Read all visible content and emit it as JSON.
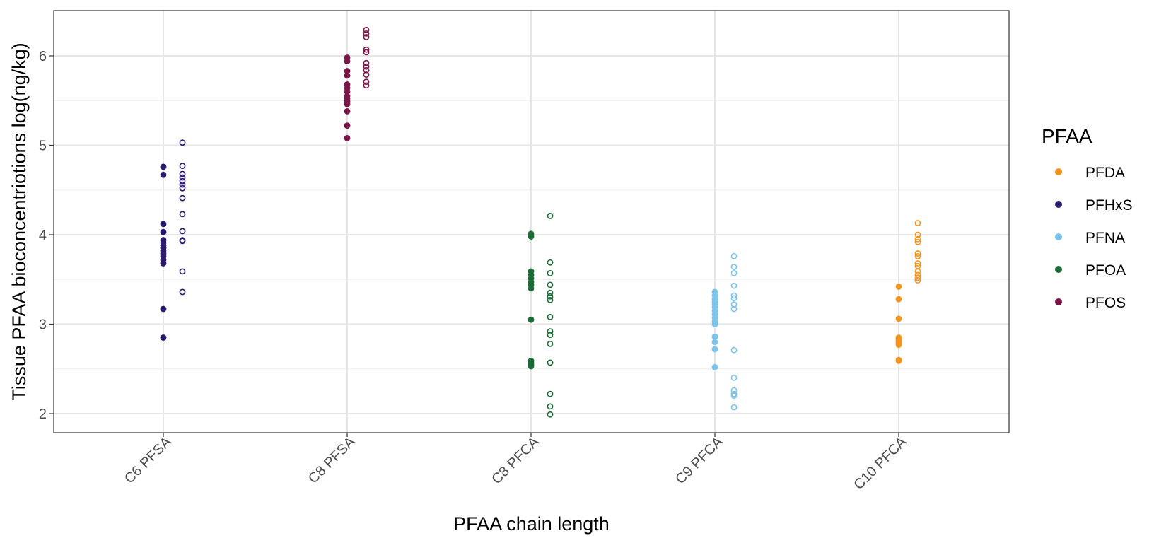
{
  "chart_data": {
    "type": "scatter",
    "title": "",
    "xlabel": "PFAA chain length",
    "ylabel": "Tissue PFAA bioconcentriotions log(ng/kg)",
    "ylim": [
      1.8,
      6.5
    ],
    "yticks": [
      2,
      3,
      4,
      5,
      6
    ],
    "categories": [
      "C6 PFSA",
      "C8 PFSA",
      "C8 PFCA",
      "C9 PFCA",
      "C10 PFCA"
    ],
    "grid": true,
    "legend": {
      "title": "PFAA",
      "position": "right",
      "entries": [
        "PFDA",
        "PFHxS",
        "PFNA",
        "PFOA",
        "PFOS"
      ]
    },
    "colors": {
      "PFDA": "#F7941D",
      "PFHxS": "#2C1A6B",
      "PFNA": "#7CC4EC",
      "PFOA": "#1A6B35",
      "PFOS": "#7A1648"
    },
    "series": [
      {
        "name": "PFHxS",
        "category": "C6 PFSA",
        "filled": [
          4.76,
          4.67,
          4.12,
          4.03,
          3.94,
          3.91,
          3.88,
          3.85,
          3.82,
          3.79,
          3.76,
          3.72,
          3.68,
          3.17,
          2.85
        ],
        "open": [
          5.03,
          4.77,
          4.68,
          4.64,
          4.6,
          4.56,
          4.52,
          4.41,
          4.23,
          4.04,
          3.94,
          3.93,
          3.59,
          3.36
        ]
      },
      {
        "name": "PFOS",
        "category": "C8 PFSA",
        "filled": [
          5.98,
          5.94,
          5.83,
          5.78,
          5.68,
          5.64,
          5.6,
          5.55,
          5.52,
          5.49,
          5.46,
          5.38,
          5.22,
          5.08
        ],
        "open": [
          6.29,
          6.25,
          6.21,
          6.07,
          6.04,
          5.92,
          5.88,
          5.84,
          5.79,
          5.71,
          5.67
        ]
      },
      {
        "name": "PFOA",
        "category": "C8 PFCA",
        "filled": [
          4.01,
          3.98,
          3.59,
          3.55,
          3.51,
          3.47,
          3.44,
          3.4,
          3.05,
          2.59,
          2.57,
          2.55,
          2.53
        ],
        "open": [
          4.21,
          3.69,
          3.57,
          3.44,
          3.35,
          3.31,
          3.27,
          3.08,
          2.92,
          2.88,
          2.78,
          2.57,
          2.22,
          2.08,
          1.99
        ]
      },
      {
        "name": "PFNA",
        "category": "C9 PFCA",
        "filled": [
          3.36,
          3.32,
          3.28,
          3.25,
          3.22,
          3.19,
          3.15,
          3.11,
          3.07,
          3.03,
          3.0,
          2.86,
          2.8,
          2.72,
          2.52
        ],
        "open": [
          3.76,
          3.64,
          3.57,
          3.43,
          3.32,
          3.29,
          3.22,
          3.17,
          2.71,
          2.4,
          2.26,
          2.22,
          2.2,
          2.07
        ]
      },
      {
        "name": "PFDA",
        "category": "C10 PFCA",
        "filled": [
          3.42,
          3.28,
          3.06,
          2.85,
          2.83,
          2.81,
          2.79,
          2.77,
          2.6,
          2.59
        ],
        "open": [
          4.13,
          4.0,
          3.95,
          3.92,
          3.79,
          3.76,
          3.68,
          3.65,
          3.59,
          3.55,
          3.52,
          3.49
        ]
      }
    ]
  }
}
